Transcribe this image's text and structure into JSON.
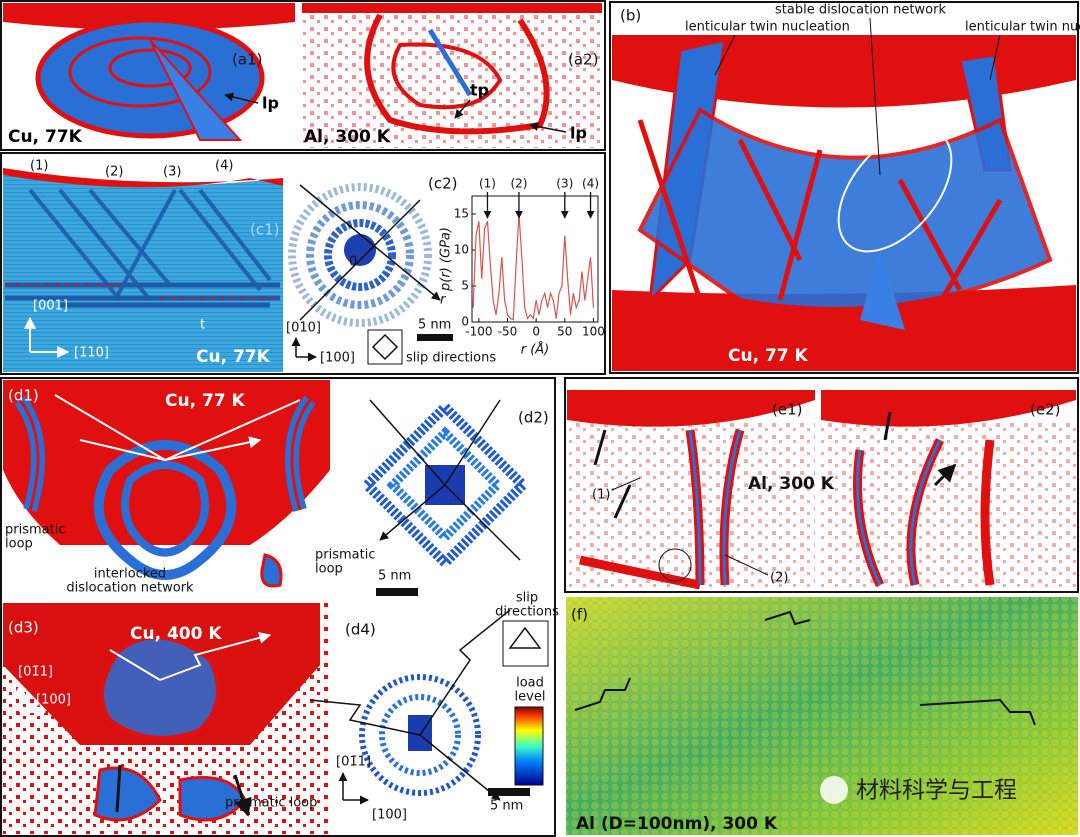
{
  "a1": {
    "label": "(a1)",
    "marker": "lp",
    "caption": "Cu, 77K"
  },
  "a2": {
    "label": "(a2)",
    "markers": [
      "tp",
      "lp"
    ],
    "caption": "Al, 300 K"
  },
  "b": {
    "label": "(b)",
    "annotations": [
      "lenticular twin nucleation",
      "stable dislocation network",
      "lenticular twin nucleation"
    ],
    "caption": "Cu, 77 K"
  },
  "c1": {
    "label": "(c1)",
    "markers": [
      "(1)",
      "(2)",
      "(3)",
      "(4)"
    ],
    "twin": "t",
    "axis_vertical": "[001]",
    "axis_horizontal": "[1̄10]",
    "caption": "Cu, 77K"
  },
  "c2": {
    "label": "(c2)",
    "origin": "0",
    "r_axis": "r",
    "axis_vertical": "[010]",
    "axis_horizontal": "[100]",
    "scale_bar": "5 nm",
    "legend": "slip directions"
  },
  "chart_data": {
    "type": "line",
    "ylabel": "p(r) (GPa)",
    "xlabel": "r (Å)",
    "x": [
      -110,
      -105,
      -100,
      -95,
      -90,
      -85,
      -80,
      -75,
      -70,
      -65,
      -60,
      -55,
      -50,
      -45,
      -40,
      -35,
      -30,
      -25,
      -20,
      -15,
      -10,
      -5,
      0,
      5,
      10,
      15,
      20,
      25,
      30,
      35,
      40,
      45,
      50,
      55,
      60,
      65,
      70,
      75,
      80,
      85,
      90,
      95,
      100
    ],
    "series": [
      {
        "color": "#d9534f",
        "values": [
          2,
          12,
          14,
          6,
          13,
          14,
          8,
          3,
          1,
          4,
          9,
          3,
          1,
          0.5,
          0.3,
          8,
          15,
          9,
          2,
          0.5,
          1,
          0.5,
          3,
          1,
          3,
          4,
          2,
          4,
          3,
          0.5,
          4,
          5,
          12,
          6,
          1,
          4,
          2,
          3,
          7,
          3,
          6,
          9,
          2
        ]
      }
    ],
    "xlim": [
      -112,
      108
    ],
    "ylim": [
      0,
      17.5
    ],
    "xticks": [
      -100,
      -50,
      0,
      50,
      100
    ],
    "yticks": [
      0,
      5,
      10,
      15
    ],
    "annotations": [
      {
        "label": "(1)",
        "x": -85
      },
      {
        "label": "(2)",
        "x": -30
      },
      {
        "label": "(3)",
        "x": 50
      },
      {
        "label": "(4)",
        "x": 95
      }
    ]
  },
  "d1": {
    "label": "(d1)",
    "caption": "Cu, 77 K",
    "loop_left": [
      "prismatic",
      "loop"
    ],
    "loop_right": [
      "prismatic",
      "loop"
    ],
    "network": [
      "interlocked",
      "dislocation network"
    ]
  },
  "d2": {
    "label": "(d2)",
    "scale_bar": "5 nm"
  },
  "d3": {
    "label": "(d3)",
    "caption": "Cu, 400 K",
    "axis_vertical": "[01̄1]",
    "axis_horizontal": "[100]",
    "annotation": "prismatic loop"
  },
  "d4": {
    "label": "(d4)",
    "legend": [
      "slip",
      "directions"
    ],
    "colorbar": [
      "load",
      "level"
    ],
    "axis_vertical": "[01̄1]",
    "axis_horizontal": "[100]",
    "scale_bar": "5 nm"
  },
  "e1": {
    "label": "(e1)",
    "markers": [
      "(1)",
      "(2)"
    ],
    "caption": "Al, 300 K"
  },
  "e2": {
    "label": "(e2)"
  },
  "f": {
    "label": "(f)",
    "caption": "Al (D=100nm), 300 K",
    "watermark": "材料科学与工程"
  }
}
